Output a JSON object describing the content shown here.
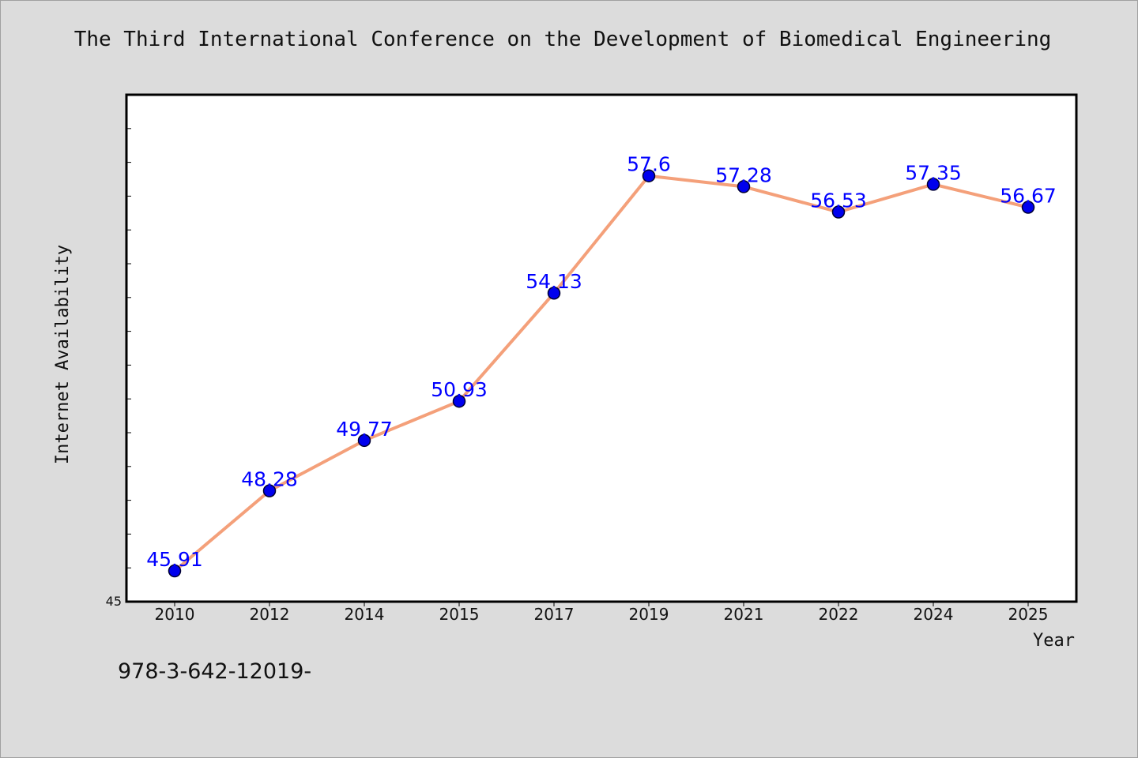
{
  "chart_data": {
    "type": "line",
    "title": "The Third International Conference on the Development of Biomedical Engineering",
    "xlabel": "Year",
    "ylabel": "Internet Availability",
    "categories": [
      "2010",
      "2012",
      "2014",
      "2015",
      "2017",
      "2019",
      "2021",
      "2022",
      "2024",
      "2025"
    ],
    "series": [
      {
        "values": [
          45.91,
          48.28,
          49.77,
          50.93,
          54.13,
          57.6,
          57.28,
          56.53,
          57.35,
          56.67
        ],
        "labels": [
          "45.91",
          "48.28",
          "49.77",
          "50.93",
          "54.13",
          "57.6",
          "57.28",
          "56.53",
          "57.35",
          "56.67"
        ]
      }
    ],
    "ylim": [
      45,
      60
    ],
    "y_tick_labels": [
      "45"
    ],
    "grid": false,
    "legend": "none",
    "colors": {
      "line": "#f4a07a",
      "marker": "#0000ee",
      "marker_edge": "#000033",
      "data_label": "#0000ff",
      "plot_bg": "#ffffff",
      "page_bg": "#dcdcdc"
    }
  },
  "footer": {
    "code": "978-3-642-12019-"
  }
}
